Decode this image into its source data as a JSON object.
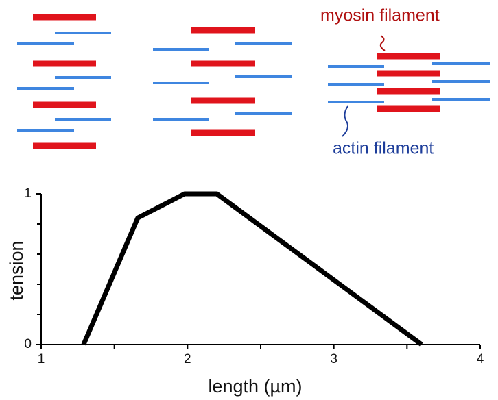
{
  "diagram": {
    "myosin_label": "myosin filament",
    "actin_label": "actin filament"
  },
  "chart_data": {
    "type": "line",
    "x_label": "length (µm)",
    "y_label": "tension",
    "x": [
      1.29,
      1.66,
      1.98,
      2.2,
      3.6
    ],
    "values": [
      0,
      0.84,
      1,
      1,
      0
    ],
    "color": "#000000",
    "xlim": [
      1,
      4
    ],
    "ylim": [
      0,
      1
    ],
    "xticks": [
      1,
      2,
      3,
      4
    ],
    "yticks": [
      0,
      1
    ],
    "xminor_ticks": [
      1.5,
      2.5,
      3.5
    ],
    "yminor_ticks": [
      0.2,
      0.4,
      0.6,
      0.8
    ]
  }
}
